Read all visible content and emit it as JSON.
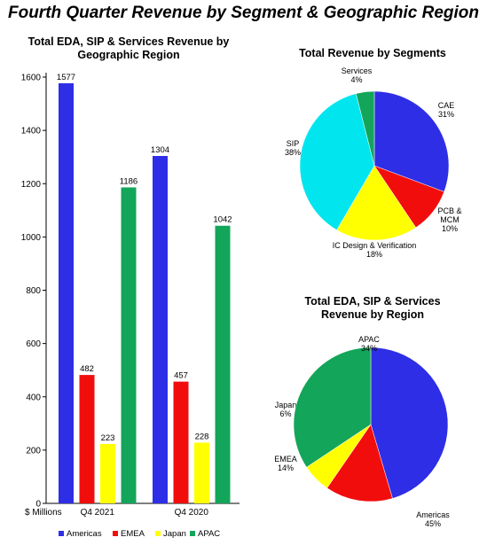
{
  "page": {
    "title": "Fourth Quarter Revenue by Segment & Geographic Region"
  },
  "colors": {
    "Americas": "#2E2EE6",
    "EMEA": "#F20D0D",
    "Japan": "#FFFF00",
    "APAC": "#13A55A",
    "CAE": "#2E2EE6",
    "PCB_MCM": "#F20D0D",
    "IC_Design": "#FFFF00",
    "SIP": "#00E5EE",
    "Services": "#13A55A"
  },
  "chart_data": [
    {
      "type": "bar",
      "title_line1": "Total EDA, SIP & Services Revenue by",
      "title_line2": "Geographic Region",
      "ylabel": "$ Millions",
      "ylim": [
        0,
        1600
      ],
      "yticks": [
        0,
        200,
        400,
        600,
        800,
        1000,
        1200,
        1400,
        1600
      ],
      "categories": [
        "Q4 2021",
        "Q4 2020"
      ],
      "series": [
        {
          "name": "Americas",
          "values": [
            1577,
            1304
          ]
        },
        {
          "name": "EMEA",
          "values": [
            482,
            457
          ]
        },
        {
          "name": "Japan",
          "values": [
            223,
            228
          ]
        },
        {
          "name": "APAC",
          "values": [
            1186,
            1042
          ]
        }
      ],
      "legend_position": "bottom",
      "grid": false
    },
    {
      "type": "pie",
      "title": "Total Revenue by Segments",
      "slices": [
        {
          "key": "CAE",
          "label": [
            "CAE",
            "31%"
          ],
          "value": 31
        },
        {
          "key": "PCB_MCM",
          "label": [
            "PCB &",
            "MCM",
            "10%"
          ],
          "value": 10
        },
        {
          "key": "IC_Design",
          "label": [
            "IC Design & Verification",
            "18%"
          ],
          "value": 18
        },
        {
          "key": "SIP",
          "label": [
            "SIP",
            "38%"
          ],
          "value": 38
        },
        {
          "key": "Services",
          "label": [
            "Services",
            "4%"
          ],
          "value": 4
        }
      ]
    },
    {
      "type": "pie",
      "title_line1": "Total EDA, SIP & Services",
      "title_line2": "Revenue by Region",
      "slices": [
        {
          "key": "Americas",
          "label": [
            "Americas",
            "45%"
          ],
          "value": 45
        },
        {
          "key": "EMEA",
          "label": [
            "EMEA",
            "14%"
          ],
          "value": 14
        },
        {
          "key": "Japan",
          "label": [
            "Japan",
            "6%"
          ],
          "value": 6
        },
        {
          "key": "APAC",
          "label": [
            "APAC",
            "34%"
          ],
          "value": 34
        }
      ]
    }
  ]
}
